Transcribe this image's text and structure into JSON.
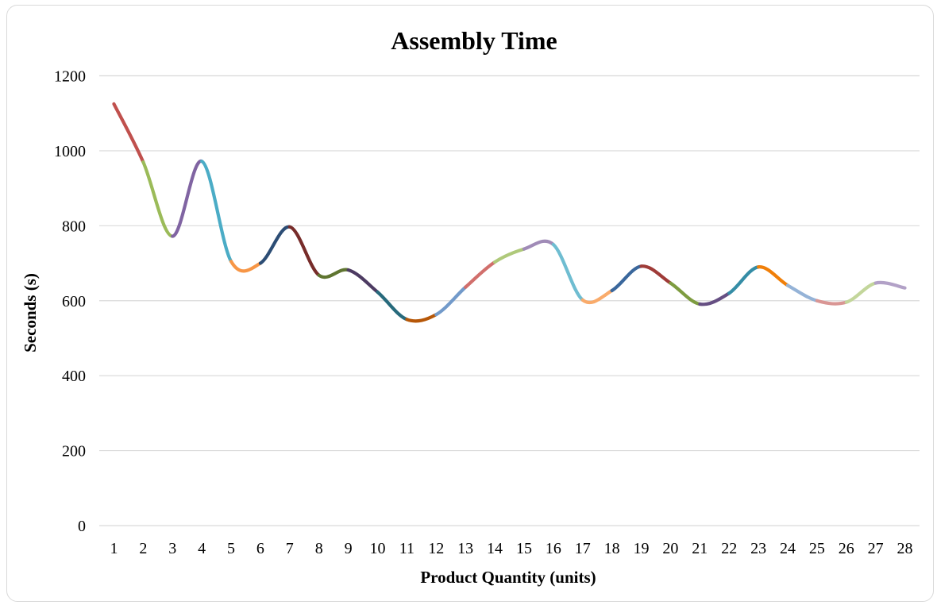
{
  "chart_data": {
    "type": "line",
    "title": "Assembly Time",
    "xlabel": "Product Quantity (units)",
    "ylabel": "Seconds (s)",
    "categories": [
      "1",
      "2",
      "3",
      "4",
      "5",
      "6",
      "7",
      "8",
      "9",
      "10",
      "11",
      "12",
      "13",
      "14",
      "15",
      "16",
      "17",
      "18",
      "19",
      "20",
      "21",
      "22",
      "23",
      "24",
      "25",
      "26",
      "27",
      "28"
    ],
    "series": [
      {
        "values": [
          1125,
          970,
          772,
          972,
          705,
          700,
          797,
          668,
          682,
          623,
          550,
          563,
          636,
          703,
          738,
          750,
          602,
          627,
          692,
          647,
          591,
          620,
          690,
          641,
          600,
          596,
          647,
          634
        ]
      }
    ],
    "ylim": [
      0,
      1200
    ],
    "yticks": [
      0,
      200,
      400,
      600,
      800,
      1000,
      1200
    ],
    "grid": true,
    "legend": "none",
    "segment_colors": [
      "#c0504d",
      "#9bbb59",
      "#8064a2",
      "#4bacc6",
      "#f79646",
      "#2c4d75",
      "#772c2a",
      "#5f7530",
      "#4d3b62",
      "#276a7c",
      "#b65708",
      "#729aca",
      "#d16f6c",
      "#afc97a",
      "#a08bb7",
      "#6fbdd1",
      "#f9ab6b",
      "#3a679c",
      "#9f3b38",
      "#7e9c40",
      "#664f83",
      "#358da6",
      "#f07f09",
      "#95b3d7",
      "#d99694",
      "#c3d69b",
      "#b2a1c7"
    ]
  }
}
